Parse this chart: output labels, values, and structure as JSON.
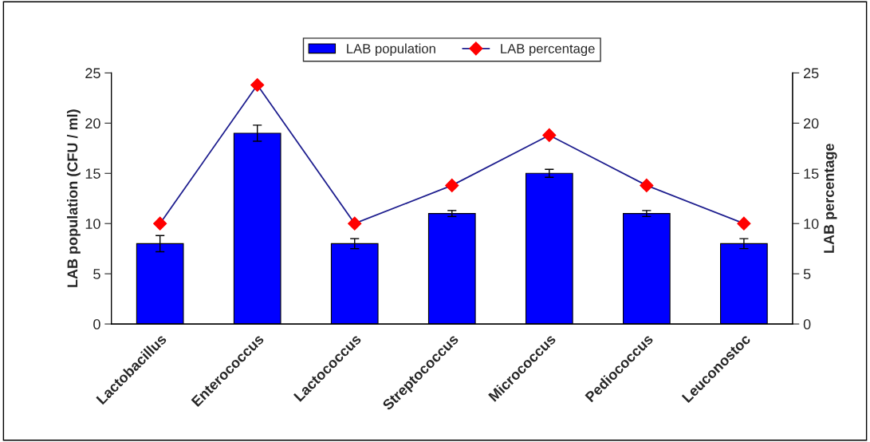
{
  "chart_data": {
    "type": "bar",
    "ylabel": "LAB population (CFU / ml)",
    "y2label": "LAB percentage",
    "categories": [
      "Lactobacillus",
      "Enterococcus",
      "Lactococcus",
      "Streptococcus",
      "Micrococcus",
      "Pediococcus",
      "Leuconostoc"
    ],
    "series": [
      {
        "name": "LAB population",
        "color": "#0000ff",
        "values": [
          8,
          19,
          8,
          11,
          15,
          11,
          8
        ],
        "errors": [
          0.8,
          0.8,
          0.5,
          0.3,
          0.4,
          0.3,
          0.5
        ]
      },
      {
        "name": "LAB percentage",
        "type": "line",
        "axis": "y2",
        "color": "#1f1f8f",
        "marker": "diamond",
        "values": [
          10,
          23.8,
          10,
          13.8,
          18.8,
          13.8,
          10
        ]
      }
    ],
    "ylim": [
      0,
      25
    ],
    "yticks": [
      0,
      5,
      10,
      15,
      20,
      25
    ],
    "y2lim": [
      0,
      25
    ],
    "y2ticks": [
      0,
      5,
      10,
      15,
      20,
      25
    ],
    "grid": false,
    "legend": "top"
  }
}
